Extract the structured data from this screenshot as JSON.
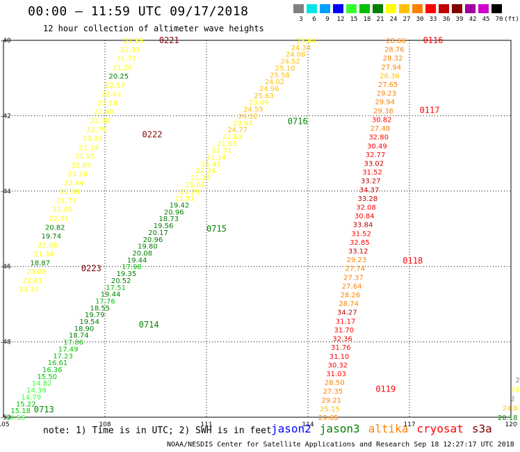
{
  "header": {
    "title": "00:00 – 11:59 UTC 09/17/2018",
    "subtitle": "12 hour collection of altimeter wave heights"
  },
  "colorbar": {
    "unit": "(ft)",
    "bins": [
      {
        "label": "3",
        "color": "#808080"
      },
      {
        "label": "6",
        "color": "#00e5e5"
      },
      {
        "label": "9",
        "color": "#00a0ff"
      },
      {
        "label": "12",
        "color": "#0000ff"
      },
      {
        "label": "15",
        "color": "#33ff33"
      },
      {
        "label": "18",
        "color": "#00c000"
      },
      {
        "label": "21",
        "color": "#008000"
      },
      {
        "label": "24",
        "color": "#ffff00"
      },
      {
        "label": "27",
        "color": "#ffc000"
      },
      {
        "label": "30",
        "color": "#ff8000"
      },
      {
        "label": "33",
        "color": "#ff0000"
      },
      {
        "label": "36",
        "color": "#c00000"
      },
      {
        "label": "39",
        "color": "#800000"
      },
      {
        "label": "42",
        "color": "#a000a0"
      },
      {
        "label": "45",
        "color": "#d000d0"
      },
      {
        "label": "70",
        "color": "#000000"
      }
    ]
  },
  "footer": {
    "note": "note: 1) Time is in UTC; 2) SWH is in feet",
    "credit": "NOAA/NESDIS Center for Satellite Applications and Research   Sep 18 12:27:17 UTC 2018",
    "legend": [
      {
        "name": "jason2",
        "color": "#0000ff"
      },
      {
        "name": "jason3",
        "color": "#008000"
      },
      {
        "name": "altika",
        "color": "#ff8000"
      },
      {
        "name": "cryosat",
        "color": "#ff0000"
      },
      {
        "name": "s3a",
        "color": "#800000"
      }
    ]
  },
  "chart_data": {
    "type": "scatter",
    "title": "00:00 – 11:59 UTC 09/17/2018",
    "subtitle": "12 hour collection of altimeter wave heights",
    "xlim": [
      105,
      120
    ],
    "ylim": [
      -50,
      -40
    ],
    "x_ticks": [
      "105",
      "108",
      "111",
      "114",
      "117",
      "120"
    ],
    "y_ticks": [
      "-40",
      "-42",
      "-44",
      "-46",
      "-48",
      "-50"
    ],
    "grid": true,
    "units": "ft",
    "value_colors": [
      {
        "max": 3,
        "color": "#808080"
      },
      {
        "max": 6,
        "color": "#00e5e5"
      },
      {
        "max": 9,
        "color": "#00a0ff"
      },
      {
        "max": 12,
        "color": "#0000ff"
      },
      {
        "max": 15,
        "color": "#33ff33"
      },
      {
        "max": 18,
        "color": "#00c000"
      },
      {
        "max": 21,
        "color": "#008000"
      },
      {
        "max": 24,
        "color": "#ffff00"
      },
      {
        "max": 27,
        "color": "#ffc000"
      },
      {
        "max": 30,
        "color": "#ff8000"
      },
      {
        "max": 33,
        "color": "#ff0000"
      },
      {
        "max": 36,
        "color": "#c00000"
      },
      {
        "max": 39,
        "color": "#800000"
      },
      {
        "max": 42,
        "color": "#a000a0"
      },
      {
        "max": 45,
        "color": "#d000d0"
      },
      {
        "max": 70,
        "color": "#000000"
      }
    ],
    "tracks": [
      {
        "satellite": "s3a",
        "start": [
          108.85,
          -40.0
        ],
        "end": [
          105.75,
          -46.6
        ],
        "values": [
          "21.85",
          "22.33",
          "21.73",
          "21.28",
          "20.25",
          "22.13",
          "22.42",
          "22.18",
          "22.40",
          "22.30",
          "22.79",
          "23.33",
          "21.14",
          "21.95",
          "22.84",
          "23.28",
          "22.44",
          "22.38",
          "21.73",
          "21.09",
          "22.31",
          "20.82",
          "19.74",
          "22.08",
          "21.34",
          "18.87",
          "23.08",
          "22.61",
          "23.33"
        ],
        "time_labels": [
          {
            "text": "0221",
            "lon": 109.6,
            "lat": -40.0
          },
          {
            "text": "0222",
            "lon": 109.1,
            "lat": -42.5
          },
          {
            "text": "0223",
            "lon": 107.3,
            "lat": -46.05
          }
        ]
      },
      {
        "satellite": "jason3",
        "start": [
          113.95,
          -40.0
        ],
        "end": [
          105.35,
          -50.0
        ],
        "values": [
          "23.64",
          "24.34",
          "24.08",
          "24.52",
          "25.10",
          "25.58",
          "24.02",
          "24.96",
          "25.63",
          "23.09",
          "24.55",
          "24.52",
          "23.94",
          "24.77",
          "22.63",
          "21.95",
          "22.31",
          "21.14",
          "21.41",
          "22.24",
          "21.33",
          "21.01",
          "22.29",
          "21.91",
          "19.42",
          "20.96",
          "18.73",
          "19.56",
          "20.17",
          "20.96",
          "19.80",
          "20.08",
          "19.44",
          "17.98",
          "19.35",
          "20.52",
          "17.51",
          "19.44",
          "17.76",
          "18.55",
          "19.79",
          "19.54",
          "18.90",
          "18.74",
          "17.86",
          "17.49",
          "17.23",
          "16.61",
          "16.36",
          "15.50",
          "14.82",
          "14.39",
          "14.79",
          "15.22",
          "15.18",
          "14.56"
        ],
        "time_labels": [
          {
            "text": "0716",
            "lon": 113.4,
            "lat": -42.15
          },
          {
            "text": "0715",
            "lon": 111.0,
            "lat": -45.0
          },
          {
            "text": "0714",
            "lon": 109.0,
            "lat": -47.55
          },
          {
            "text": "0713",
            "lon": 105.9,
            "lat": -49.8
          }
        ]
      },
      {
        "satellite": "cryosat",
        "start": [
          116.6,
          -40.0
        ],
        "end": [
          114.6,
          -50.0
        ],
        "values": [
          "28.66",
          "28.76",
          "28.32",
          "27.94",
          "26.36",
          "27.65",
          "29.23",
          "29.94",
          "29.38",
          "30.82",
          "27.48",
          "32.80",
          "30.49",
          "32.77",
          "33.02",
          "31.52",
          "33.27",
          "34.37",
          "33.28",
          "32.08",
          "30.84",
          "33.84",
          "31.52",
          "32.85",
          "33.12",
          "29.23",
          "27.74",
          "27.37",
          "27.64",
          "28.26",
          "28.74",
          "34.27",
          "31.17",
          "31.70",
          "32.36",
          "31.76",
          "31.10",
          "30.32",
          "31.03",
          "28.50",
          "27.35",
          "29.21",
          "25.15",
          "29.65"
        ],
        "time_labels": [
          {
            "text": "0116",
            "lon": 117.4,
            "lat": -40.0
          },
          {
            "text": "0117",
            "lon": 117.3,
            "lat": -41.85
          },
          {
            "text": "0118",
            "lon": 116.8,
            "lat": -45.85
          },
          {
            "text": "0119",
            "lon": 116.0,
            "lat": -49.25
          }
        ]
      },
      {
        "satellite": "s3a",
        "start": [
          120.2,
          -49.0
        ],
        "end": [
          119.9,
          -50.0
        ],
        "values": [
          "2",
          "24",
          "2",
          "24.8",
          "20.18"
        ],
        "time_labels": []
      }
    ]
  }
}
